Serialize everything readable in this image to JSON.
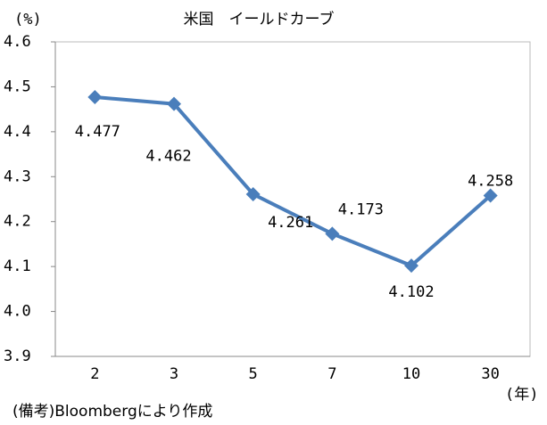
{
  "chart_data": {
    "type": "line",
    "title": "米国　イールドカーブ",
    "y_axis_label": "(%)",
    "x_axis_label": "(年)",
    "note": "(備考)Bloombergにより作成",
    "categories": [
      "2",
      "3",
      "5",
      "7",
      "10",
      "30"
    ],
    "series": [
      {
        "name": "米国",
        "color": "#4a7ebb",
        "values": [
          4.477,
          4.462,
          4.261,
          4.173,
          4.102,
          4.258
        ]
      }
    ],
    "ylim": [
      3.9,
      4.6
    ],
    "yticks": [
      3.9,
      {
        "value": 4,
        "label": "4.0"
      },
      4.1,
      4.2,
      4.3,
      4.4,
      4.5,
      4.6
    ],
    "grid": false
  }
}
